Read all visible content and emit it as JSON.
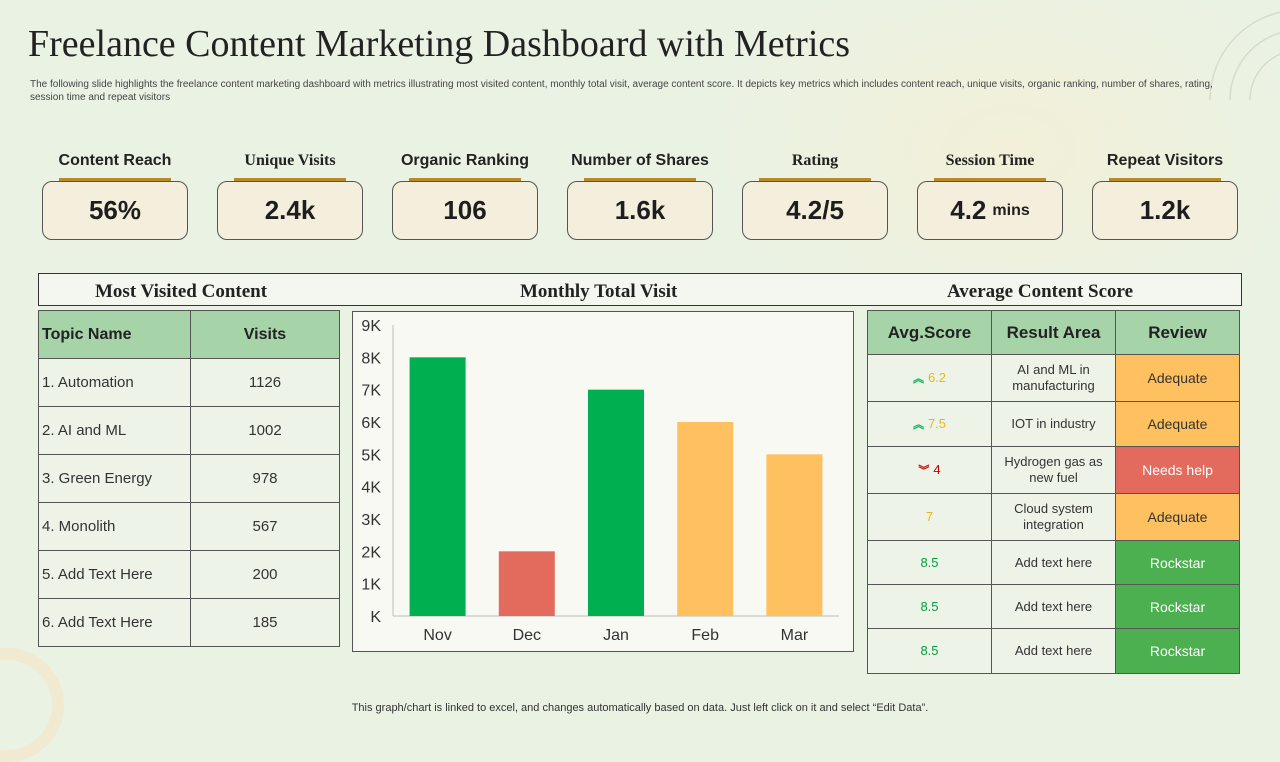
{
  "header": {
    "title": "Freelance Content Marketing Dashboard with Metrics",
    "subtitle": "The following slide highlights the freelance content marketing dashboard with metrics illustrating most visited content, monthly total visit, average content score. It depicts key metrics which includes content reach, unique visits, organic ranking, number of shares, rating, session time and repeat visitors"
  },
  "kpis": [
    {
      "label": "Content Reach",
      "value": "56%",
      "unit": ""
    },
    {
      "label": "Unique Visits",
      "value": "2.4k",
      "unit": ""
    },
    {
      "label": "Organic Ranking",
      "value": "106",
      "unit": ""
    },
    {
      "label": "Number of Shares",
      "value": "1.6k",
      "unit": ""
    },
    {
      "label": "Rating",
      "value": "4.2/5",
      "unit": ""
    },
    {
      "label": "Session Time",
      "value": "4.2",
      "unit": "mins"
    },
    {
      "label": "Repeat Visitors",
      "value": "1.2k",
      "unit": ""
    }
  ],
  "sections": {
    "most_visited": "Most Visited Content",
    "monthly_visit": "Monthly Total Visit",
    "avg_score": "Average Content Score"
  },
  "most_visited": {
    "headers": [
      "Topic  Name",
      "Visits"
    ],
    "rows": [
      [
        "1. Automation",
        "1126"
      ],
      [
        "2. AI and ML",
        "1002"
      ],
      [
        "3. Green Energy",
        "978"
      ],
      [
        "4. Monolith",
        "567"
      ],
      [
        "5. Add Text Here",
        "200"
      ],
      [
        "6. Add Text Here",
        "185"
      ]
    ]
  },
  "chart_data": {
    "type": "bar",
    "title": "Monthly Total Visit",
    "categories": [
      "Nov",
      "Dec",
      "Jan",
      "Feb",
      "Mar"
    ],
    "values": [
      8000,
      2000,
      7000,
      6000,
      5000
    ],
    "bar_colors": [
      "#00b050",
      "#e26b5e",
      "#00b050",
      "#ffc060",
      "#ffc060"
    ],
    "ylim": [
      0,
      9000
    ],
    "ytick_labels": [
      "K",
      "1K",
      "2K",
      "3K",
      "4K",
      "5K",
      "6K",
      "7K",
      "8K",
      "9K"
    ],
    "xlabel": "",
    "ylabel": "",
    "grid": false
  },
  "avg_score": {
    "headers": [
      "Avg.Score",
      "Result Area",
      "Review"
    ],
    "rows": [
      {
        "arrow": "up",
        "arrow_color": "#00b050",
        "score": "6.2",
        "score_color": "#e6b820",
        "area": "AI and ML in manufacturing",
        "review": "Adequate",
        "review_color": "#ffc060",
        "review_text_color": "#333333"
      },
      {
        "arrow": "up",
        "arrow_color": "#00b050",
        "score": "7.5",
        "score_color": "#e6b820",
        "area": "IOT  in industry",
        "review": "Adequate",
        "review_color": "#ffc060",
        "review_text_color": "#333333"
      },
      {
        "arrow": "down",
        "arrow_color": "#c00000",
        "score": "4",
        "score_color": "#c00000",
        "area": "Hydrogen gas as new fuel",
        "review": "Needs help",
        "review_color": "#e26b5e",
        "review_text_color": "#ffffff"
      },
      {
        "arrow": "",
        "arrow_color": "",
        "score": "7",
        "score_color": "#e6b820",
        "area": "Cloud system integration",
        "review": "Adequate",
        "review_color": "#ffc060",
        "review_text_color": "#333333"
      },
      {
        "arrow": "",
        "arrow_color": "",
        "score": "8.5",
        "score_color": "#00a040",
        "area": "Add text here",
        "review": "Rockstar",
        "review_color": "#4caf50",
        "review_text_color": "#ffffff"
      },
      {
        "arrow": "",
        "arrow_color": "",
        "score": "8.5",
        "score_color": "#00a040",
        "area": "Add text here",
        "review": "Rockstar",
        "review_color": "#4caf50",
        "review_text_color": "#ffffff"
      },
      {
        "arrow": "",
        "arrow_color": "",
        "score": "8.5",
        "score_color": "#00a040",
        "area": "Add text here",
        "review": "Rockstar",
        "review_color": "#4caf50",
        "review_text_color": "#ffffff"
      }
    ]
  },
  "footer": "This graph/chart is linked to excel,  and changes automatically based on data. Just left click on it and select “Edit Data”."
}
